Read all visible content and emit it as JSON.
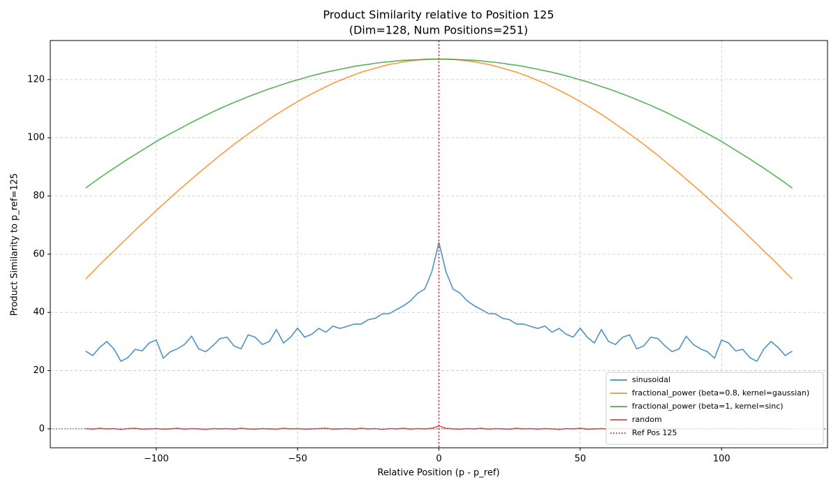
{
  "chart_data": {
    "type": "line",
    "title": "Product Similarity relative to Position 125",
    "subtitle": "(Dim=128, Num Positions=251)",
    "x_label": "Relative Position (p - p_ref)",
    "y_label": "Product Similarity to p_ref=125",
    "xlim": [
      -137.5,
      137.5
    ],
    "ylim": [
      -6.5,
      133.4
    ],
    "xticks": [
      {
        "value": -100,
        "label": "−100"
      },
      {
        "value": -50,
        "label": "−50"
      },
      0,
      50,
      100
    ],
    "yticks": [
      0,
      20,
      40,
      60,
      80,
      100,
      120
    ],
    "grid": true,
    "legend": "lower right",
    "x": [
      -125,
      -122.5,
      -120,
      -117.5,
      -115,
      -112.5,
      -110,
      -107.5,
      -105,
      -102.5,
      -100,
      -97.5,
      -95,
      -92.5,
      -90,
      -87.5,
      -85,
      -82.5,
      -80,
      -77.5,
      -75,
      -72.5,
      -70,
      -67.5,
      -65,
      -62.5,
      -60,
      -57.5,
      -55,
      -52.5,
      -50,
      -47.5,
      -45,
      -42.5,
      -40,
      -37.5,
      -35,
      -32.5,
      -30,
      -27.5,
      -25,
      -22.5,
      -20,
      -17.5,
      -15,
      -12.5,
      -10,
      -7.5,
      -5,
      -2.5,
      0,
      2.5,
      5,
      7.5,
      10,
      12.5,
      15,
      17.5,
      20,
      22.5,
      25,
      27.5,
      30,
      32.5,
      35,
      37.5,
      40,
      42.5,
      45,
      47.5,
      50,
      52.5,
      55,
      57.5,
      60,
      62.5,
      65,
      67.5,
      70,
      72.5,
      75,
      77.5,
      80,
      82.5,
      85,
      87.5,
      90,
      92.5,
      95,
      97.5,
      100,
      102.5,
      105,
      107.5,
      110,
      112.5,
      115,
      117.5,
      120,
      122.5,
      125
    ],
    "series": [
      {
        "name": "sinusoidal",
        "color": "#1f77b4",
        "values": [
          26.7,
          25.2,
          28,
          30,
          27.5,
          23.2,
          24.5,
          27.3,
          26.8,
          29.5,
          30.5,
          24.3,
          26.5,
          27.5,
          29,
          31.8,
          27.5,
          26.5,
          28.5,
          31,
          31.5,
          28.5,
          27.5,
          32.3,
          31.5,
          29,
          30,
          34.1,
          29.5,
          31.5,
          34.6,
          31.5,
          32.5,
          34.5,
          33.2,
          35.3,
          34.5,
          35.2,
          36,
          36,
          37.5,
          38,
          39.5,
          39.6,
          41,
          42.3,
          44,
          46.6,
          48,
          54,
          64,
          54,
          48,
          46.6,
          44,
          42.3,
          41,
          39.6,
          39.5,
          38,
          37.5,
          36,
          36,
          35.2,
          34.5,
          35.3,
          33.2,
          34.5,
          32.5,
          31.5,
          34.6,
          31.5,
          29.5,
          34.1,
          30,
          29,
          31.5,
          32.3,
          27.5,
          28.5,
          31.5,
          31,
          28.5,
          26.5,
          27.5,
          31.8,
          29,
          27.5,
          26.5,
          24.3,
          30.5,
          29.5,
          26.8,
          27.3,
          24.5,
          23.2,
          27.5,
          30,
          28,
          25.2,
          26.7
        ]
      },
      {
        "name": "fractional_power (beta=0.8, kernel=gaussian)",
        "color": "#ff7f0e",
        "values": [
          51.5,
          53.9,
          56.4,
          58.8,
          61.1,
          63.5,
          65.8,
          68.2,
          70.5,
          72.7,
          75.0,
          77.2,
          79.4,
          81.6,
          83.7,
          85.8,
          87.9,
          89.9,
          91.9,
          93.9,
          95.8,
          97.7,
          99.5,
          101.3,
          103.0,
          104.7,
          106.4,
          108.0,
          109.5,
          111.0,
          112.4,
          113.8,
          115.1,
          116.3,
          117.5,
          118.7,
          119.7,
          120.7,
          121.6,
          122.5,
          123.2,
          123.9,
          124.6,
          125.2,
          125.6,
          126.1,
          126.4,
          126.7,
          126.9,
          127.0,
          127.0,
          127.0,
          126.9,
          126.7,
          126.4,
          126.1,
          125.6,
          125.2,
          124.6,
          123.9,
          123.2,
          122.5,
          121.6,
          120.7,
          119.7,
          118.7,
          117.5,
          116.3,
          115.1,
          113.8,
          112.4,
          111.0,
          109.5,
          108.0,
          106.4,
          104.7,
          103.0,
          101.3,
          99.5,
          97.7,
          95.8,
          93.9,
          91.9,
          89.9,
          87.9,
          85.8,
          83.7,
          81.6,
          79.4,
          77.2,
          75.0,
          72.7,
          70.5,
          68.2,
          65.8,
          63.5,
          61.1,
          58.8,
          56.4,
          53.9,
          51.5
        ]
      },
      {
        "name": "fractional_power (beta=1, kernel=sinc)",
        "color": "#2ca02c",
        "values": [
          82.7,
          84.5,
          86.2,
          87.9,
          89.5,
          91.1,
          92.7,
          94.2,
          95.7,
          97.2,
          98.7,
          100.1,
          101.4,
          102.7,
          104.0,
          105.3,
          106.5,
          107.7,
          108.9,
          110.0,
          111.1,
          112.1,
          113.1,
          114.1,
          115.0,
          115.9,
          116.8,
          117.6,
          118.4,
          119.2,
          119.9,
          120.6,
          121.3,
          121.9,
          122.5,
          123.0,
          123.5,
          124.0,
          124.5,
          124.9,
          125.2,
          125.6,
          125.9,
          126.1,
          126.4,
          126.6,
          126.7,
          126.8,
          126.9,
          127.0,
          127.0,
          127.0,
          126.9,
          126.8,
          126.7,
          126.6,
          126.4,
          126.1,
          125.9,
          125.6,
          125.2,
          124.9,
          124.5,
          124.0,
          123.5,
          123.0,
          122.5,
          121.9,
          121.3,
          120.6,
          119.9,
          119.2,
          118.4,
          117.6,
          116.8,
          115.9,
          115.0,
          114.1,
          113.1,
          112.1,
          111.1,
          110.0,
          108.9,
          107.7,
          106.5,
          105.3,
          104.0,
          102.7,
          101.4,
          100.1,
          98.7,
          97.2,
          95.7,
          94.2,
          92.7,
          91.1,
          89.5,
          87.9,
          86.2,
          84.5,
          82.7
        ]
      },
      {
        "name": "random",
        "color": "#d62728",
        "values": [
          0.1,
          -0.1,
          0.2,
          0,
          0.1,
          -0.2,
          0.1,
          0.2,
          -0.1,
          0,
          0.1,
          -0.1,
          0,
          0.2,
          -0.1,
          0.1,
          0,
          -0.2,
          0.1,
          0,
          0.1,
          -0.1,
          0.2,
          0,
          -0.1,
          0.1,
          0,
          -0.1,
          0.2,
          0,
          0.1,
          -0.1,
          0,
          0.1,
          0.2,
          -0.1,
          0,
          0.1,
          -0.1,
          0.2,
          0,
          0.1,
          -0.2,
          0.1,
          0,
          0.2,
          -0.1,
          0.1,
          0,
          0.2,
          1.0,
          0.2,
          0,
          -0.1,
          0.1,
          0,
          0.2,
          -0.1,
          0.1,
          0,
          -0.1,
          0.2,
          0,
          0.1,
          -0.1,
          0.1,
          0,
          -0.2,
          0.1,
          0,
          0.2,
          -0.1,
          0,
          0.1,
          -0.1,
          0.2,
          0,
          0.1,
          -0.1,
          0,
          0.1,
          -0.2,
          0.1,
          0,
          0.2,
          -0.1,
          0,
          0.1,
          -0.1,
          0.1,
          0,
          0.2,
          -0.1,
          0.1,
          0,
          -0.1,
          0.2,
          0,
          0.1,
          -0.1,
          0.1
        ]
      }
    ],
    "reference_line": {
      "x": 0,
      "name": "Ref Pos 125",
      "color": "#d62728"
    },
    "zero_line": {
      "y": 0,
      "color": "#000000"
    }
  }
}
